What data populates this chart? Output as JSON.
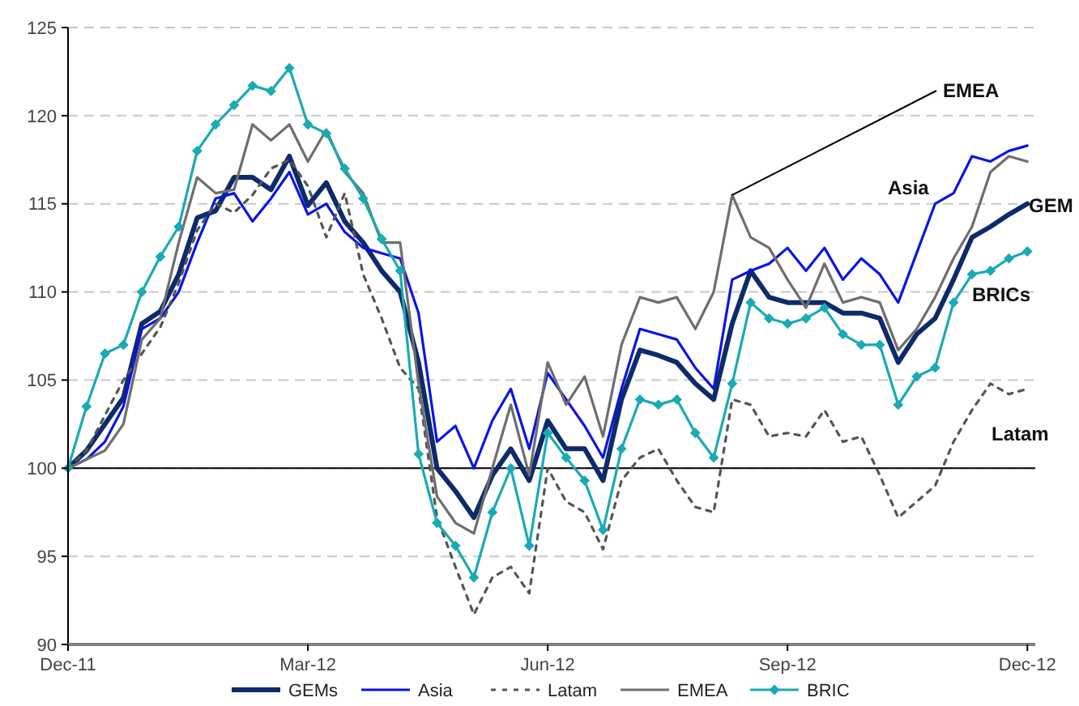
{
  "chart_data": {
    "type": "line",
    "x": [
      "2011-12-30",
      "2012-01-06",
      "2012-01-13",
      "2012-01-20",
      "2012-01-27",
      "2012-02-03",
      "2012-02-10",
      "2012-02-17",
      "2012-02-24",
      "2012-03-02",
      "2012-03-09",
      "2012-03-16",
      "2012-03-23",
      "2012-03-30",
      "2012-04-06",
      "2012-04-13",
      "2012-04-20",
      "2012-04-27",
      "2012-05-04",
      "2012-05-11",
      "2012-05-18",
      "2012-05-25",
      "2012-06-01",
      "2012-06-08",
      "2012-06-15",
      "2012-06-22",
      "2012-06-29",
      "2012-07-06",
      "2012-07-13",
      "2012-07-20",
      "2012-07-27",
      "2012-08-03",
      "2012-08-10",
      "2012-08-17",
      "2012-08-24",
      "2012-08-31",
      "2012-09-07",
      "2012-09-14",
      "2012-09-21",
      "2012-09-28",
      "2012-10-05",
      "2012-10-12",
      "2012-10-19",
      "2012-10-26",
      "2012-11-02",
      "2012-11-09",
      "2012-11-16",
      "2012-11-23",
      "2012-11-30",
      "2012-12-07",
      "2012-12-14",
      "2012-12-21",
      "2012-12-28"
    ],
    "series": [
      {
        "name": "GEMs",
        "color": "#0d2b6b",
        "values": [
          100,
          101,
          102.5,
          104,
          108.2,
          108.9,
          111,
          114.2,
          114.6,
          116.5,
          116.5,
          115.8,
          117.7,
          114.9,
          116.2,
          114,
          112.8,
          111.2,
          110,
          106,
          100,
          98.7,
          97.2,
          99.6,
          101.1,
          99.3,
          102.7,
          101.1,
          101.1,
          99.3,
          103.9,
          106.7,
          106.4,
          106,
          104.8,
          103.9,
          108.2,
          111.2,
          109.7,
          109.4,
          109.4,
          109.4,
          108.8,
          108.8,
          108.5,
          106,
          107.6,
          108.5,
          110.7,
          113.1,
          113.7,
          114.4,
          115
        ]
      },
      {
        "name": "Asia",
        "color": "#0a14e6",
        "values": [
          100,
          100.5,
          101.5,
          103.5,
          107.9,
          108.5,
          110,
          112.8,
          115.3,
          115.6,
          114,
          115.3,
          116.8,
          114.4,
          115,
          113.4,
          112.5,
          112.2,
          111.9,
          108.8,
          101.5,
          102.4,
          100,
          102.7,
          104.5,
          101.1,
          105.4,
          103.9,
          102.4,
          100.6,
          104.5,
          107.9,
          107.6,
          107.3,
          105.7,
          104.5,
          110.7,
          111.2,
          111.6,
          112.5,
          111.2,
          112.5,
          110.7,
          111.9,
          111,
          109.4,
          112.2,
          115,
          115.6,
          117.7,
          117.4,
          118,
          118.3
        ]
      },
      {
        "name": "Latam",
        "color": "#555555",
        "line_style": "dashed",
        "values": [
          100,
          101,
          103,
          105,
          106.5,
          108,
          110.5,
          113.5,
          115,
          114.5,
          115.5,
          117,
          117.5,
          116,
          113.1,
          115.6,
          111,
          108.5,
          105.7,
          104.5,
          97.2,
          94.4,
          91.7,
          93.8,
          94.4,
          92.9,
          100,
          98.1,
          97.5,
          95.4,
          99.3,
          100.6,
          101.1,
          99.3,
          97.8,
          97.5,
          103.9,
          103.6,
          101.8,
          102,
          101.8,
          103.3,
          101.5,
          101.8,
          99.6,
          97.2,
          98.1,
          99,
          101.5,
          103.3,
          104.8,
          104.2,
          104.5
        ]
      },
      {
        "name": "EMEA",
        "color": "#6e6e6e",
        "values": [
          100,
          100.5,
          101,
          102.5,
          107.3,
          108.5,
          112.8,
          116.5,
          115.6,
          115.8,
          119.5,
          118.6,
          119.5,
          117.4,
          119.2,
          116.8,
          115.6,
          112.8,
          112.8,
          104.8,
          98.4,
          96.9,
          96.3,
          100,
          103.6,
          99.6,
          106,
          103.6,
          105.2,
          101.8,
          107,
          109.7,
          109.4,
          109.7,
          107.9,
          110,
          115.5,
          113.1,
          112.5,
          110.7,
          109.1,
          111.6,
          109.4,
          109.7,
          109.4,
          106.7,
          107.9,
          109.7,
          111.9,
          113.7,
          116.8,
          117.7,
          117.4
        ]
      },
      {
        "name": "BRIC",
        "color": "#1aaab4",
        "marker": "diamond",
        "values": [
          100,
          103.5,
          106.5,
          107,
          110,
          112,
          113.7,
          118,
          119.5,
          120.6,
          121.7,
          121.4,
          122.7,
          119.5,
          119,
          117,
          115.3,
          113,
          111.2,
          100.8,
          96.9,
          95.6,
          93.8,
          97.5,
          100,
          95.6,
          102,
          100.6,
          99.3,
          96.5,
          101.1,
          103.9,
          103.6,
          103.9,
          102,
          100.6,
          104.8,
          109.4,
          108.5,
          108.2,
          108.5,
          109.1,
          107.6,
          107,
          107,
          103.6,
          105.2,
          105.7,
          109.4,
          111,
          111.2,
          111.9,
          112.3
        ]
      }
    ],
    "xlim": [
      "2011-12-30",
      "2012-12-31"
    ],
    "xticks": [
      {
        "value": "2011-12-30",
        "label": "Dec-11"
      },
      {
        "value": "2012-03-30",
        "label": "Mar-12"
      },
      {
        "value": "2012-06-29",
        "label": "Jun-12"
      },
      {
        "value": "2012-09-28",
        "label": "Sep-12"
      },
      {
        "value": "2012-12-28",
        "label": "Dec-12"
      }
    ],
    "ylim": [
      90,
      125
    ],
    "yticks": [
      90,
      95,
      100,
      105,
      110,
      115,
      120,
      125
    ],
    "grid": "y",
    "legend": "bottom",
    "ref_lines": [
      {
        "axis": "y",
        "value": 100,
        "color": "#000000"
      }
    ],
    "annotations": [
      {
        "text": "EMEA",
        "x": "2012-09-07",
        "y": 115.5
      },
      "Asia",
      "GEM",
      "BRICs",
      "Latam"
    ]
  }
}
